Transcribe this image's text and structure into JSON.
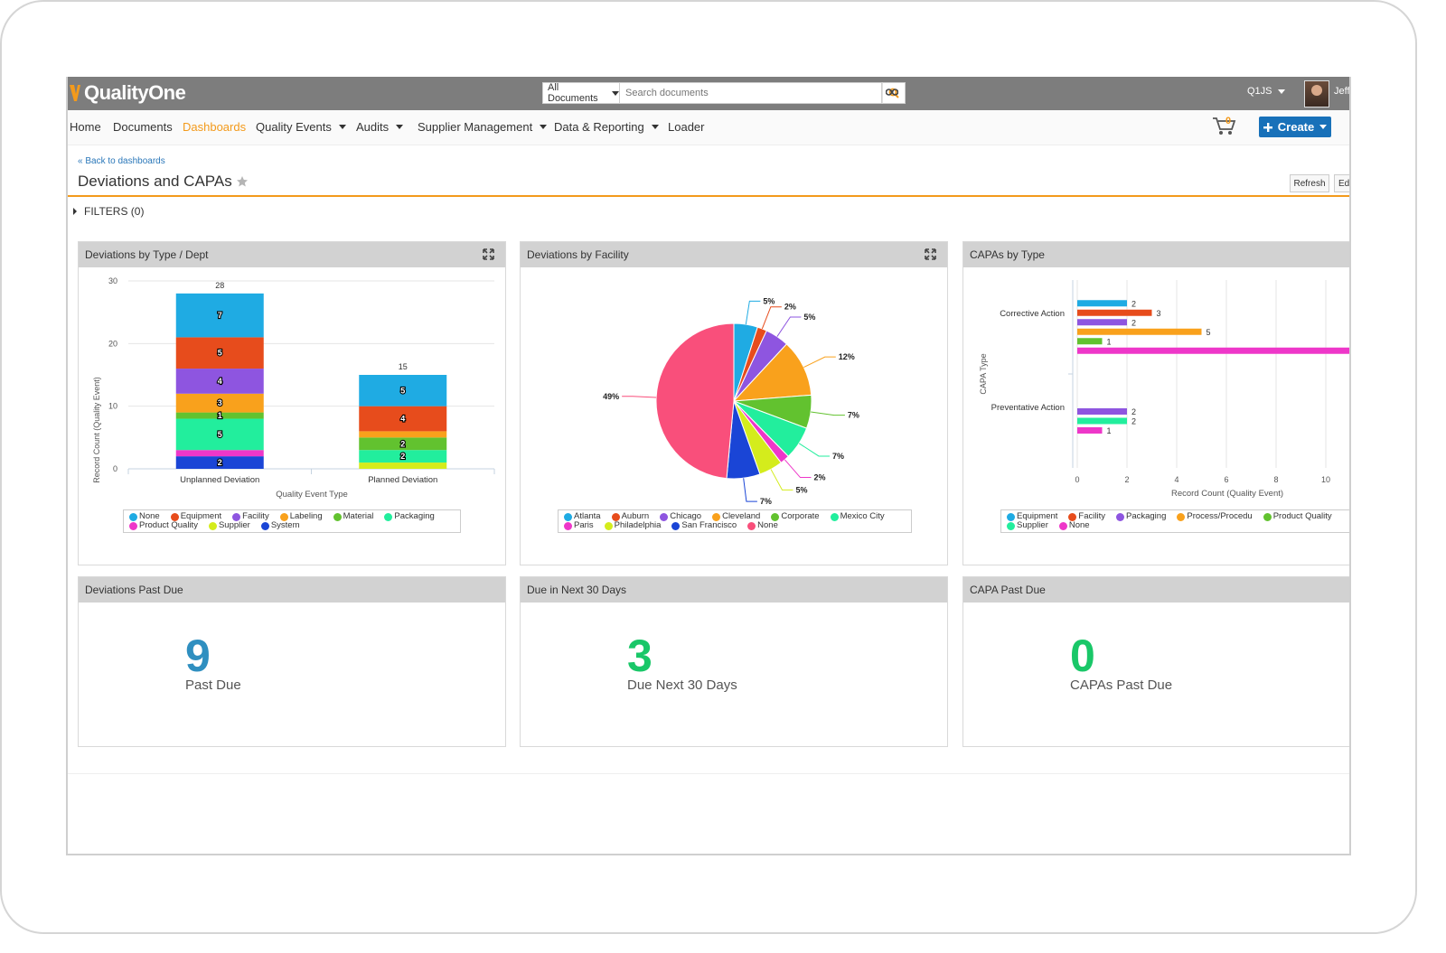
{
  "header": {
    "logo_text": "QualityOne",
    "search_scope": "All Documents",
    "search_placeholder": "Search documents",
    "user_menu": "Q1JS",
    "user_name": "Jeff"
  },
  "nav": {
    "items": [
      {
        "label": "Home",
        "dropdown": false
      },
      {
        "label": "Documents",
        "dropdown": false
      },
      {
        "label": "Dashboards",
        "dropdown": false,
        "active": true
      },
      {
        "label": "Quality Events",
        "dropdown": true
      },
      {
        "label": "Audits",
        "dropdown": true
      },
      {
        "label": "Supplier Management",
        "dropdown": true
      },
      {
        "label": "Data & Reporting",
        "dropdown": true
      },
      {
        "label": "Loader",
        "dropdown": false
      }
    ],
    "cart_count": "0",
    "create_label": "Create"
  },
  "page": {
    "back_link": "« Back to dashboards",
    "title": "Deviations and CAPAs",
    "refresh_label": "Refresh",
    "edit_label": "Ed",
    "filters_label": "FILTERS (0)"
  },
  "colors": {
    "accent": "#f39a1b",
    "brand_blue": "#1871b9",
    "kpi_blue": "#2f8fc0",
    "kpi_green": "#19c768"
  },
  "panels": {
    "p1_title": "Deviations by Type / Dept",
    "p2_title": "Deviations by Facility",
    "p3_title": "CAPAs by Type",
    "p4_title": "Deviations Past Due",
    "p5_title": "Due in Next 30 Days",
    "p6_title": "CAPA Past Due"
  },
  "kpis": {
    "past_due": {
      "value": "9",
      "label": "Past Due"
    },
    "due_next": {
      "value": "3",
      "label": "Due Next 30 Days"
    },
    "capa_past_due": {
      "value": "0",
      "label": "CAPAs Past Due"
    }
  },
  "chart_data": [
    {
      "type": "bar",
      "stacked": true,
      "categories": [
        "Unplanned Deviation",
        "Planned Deviation"
      ],
      "xlabel": "Quality Event Type",
      "ylabel": "Record Count (Quality Event)",
      "ylim": [
        0,
        30
      ],
      "yticks": [
        "0",
        "10",
        "20",
        "30"
      ],
      "totals": [
        "28",
        "15"
      ],
      "series": [
        {
          "name": "System",
          "color": "#1a45d6",
          "values": [
            2,
            0
          ]
        },
        {
          "name": "Product Quality",
          "color": "#ee37c9",
          "values": [
            1,
            0
          ]
        },
        {
          "name": "Supplier",
          "color": "#d4ec1c",
          "values": [
            0,
            1
          ]
        },
        {
          "name": "Packaging",
          "color": "#22ee9d",
          "values": [
            5,
            2
          ]
        },
        {
          "name": "Material",
          "color": "#62c22f",
          "values": [
            1,
            2
          ]
        },
        {
          "name": "Labeling",
          "color": "#f9a11c",
          "values": [
            3,
            1
          ]
        },
        {
          "name": "Facility",
          "color": "#8e55e0",
          "values": [
            4,
            0
          ]
        },
        {
          "name": "Equipment",
          "color": "#e74c1c",
          "values": [
            5,
            4
          ]
        },
        {
          "name": "None",
          "color": "#1fabe3",
          "values": [
            7,
            5
          ]
        }
      ],
      "segment_labels": [
        [
          "2",
          "",
          "",
          "5",
          "1",
          "3",
          "4",
          "5",
          "7"
        ],
        [
          "",
          "",
          "",
          "2",
          "2",
          "",
          "",
          "4",
          "5"
        ]
      ],
      "legend": [
        "None",
        "Equipment",
        "Facility",
        "Labeling",
        "Material",
        "Packaging",
        "Product Quality",
        "Supplier",
        "System"
      ]
    },
    {
      "type": "pie",
      "slices": [
        {
          "name": "Atlanta",
          "value": 5,
          "label": "5%",
          "color": "#1fabe3"
        },
        {
          "name": "Auburn",
          "value": 2,
          "label": "2%",
          "color": "#e74c1c"
        },
        {
          "name": "Chicago",
          "value": 5,
          "label": "5%",
          "color": "#8e55e0"
        },
        {
          "name": "Cleveland",
          "value": 12,
          "label": "12%",
          "color": "#f9a11c"
        },
        {
          "name": "Corporate",
          "value": 7,
          "label": "7%",
          "color": "#62c22f"
        },
        {
          "name": "Mexico City",
          "value": 7,
          "label": "7%",
          "color": "#22ee9d"
        },
        {
          "name": "Paris",
          "value": 2,
          "label": "2%",
          "color": "#ee37c9"
        },
        {
          "name": "Philadelphia",
          "value": 5,
          "label": "5%",
          "color": "#d4ec1c"
        },
        {
          "name": "San Francisco",
          "value": 7,
          "label": "7%",
          "color": "#1a45d6"
        },
        {
          "name": "None",
          "value": 49,
          "label": "49%",
          "color": "#f94f7b"
        }
      ],
      "legend": [
        "Atlanta",
        "Auburn",
        "Chicago",
        "Cleveland",
        "Corporate",
        "Mexico City",
        "Paris",
        "Philadelphia",
        "San Francisco",
        "None"
      ]
    },
    {
      "type": "bar",
      "orientation": "horizontal",
      "categories": [
        "Corrective Action",
        "Preventative Action"
      ],
      "xlabel": "Record Count (Quality Event)",
      "ylabel": "CAPA Type",
      "xlim": [
        0,
        11
      ],
      "xticks": [
        "0",
        "2",
        "4",
        "6",
        "8",
        "10"
      ],
      "series": [
        {
          "name": "Equipment",
          "color": "#1fabe3",
          "values": [
            2,
            null
          ]
        },
        {
          "name": "Facility",
          "color": "#e74c1c",
          "values": [
            3,
            null
          ]
        },
        {
          "name": "Packaging",
          "color": "#8e55e0",
          "values": [
            2,
            2
          ]
        },
        {
          "name": "Process/Procedu",
          "color": "#f9a11c",
          "values": [
            5,
            null
          ]
        },
        {
          "name": "Product Quality",
          "color": "#62c22f",
          "values": [
            1,
            null
          ]
        },
        {
          "name": "Supplier",
          "color": "#22ee9d",
          "values": [
            null,
            2
          ]
        },
        {
          "name": "None",
          "color": "#ee37c9",
          "values": [
            11,
            1
          ]
        }
      ],
      "legend": [
        "Equipment",
        "Facility",
        "Packaging",
        "Process/Procedu",
        "Product Quality",
        "Supplier",
        "None"
      ]
    }
  ]
}
